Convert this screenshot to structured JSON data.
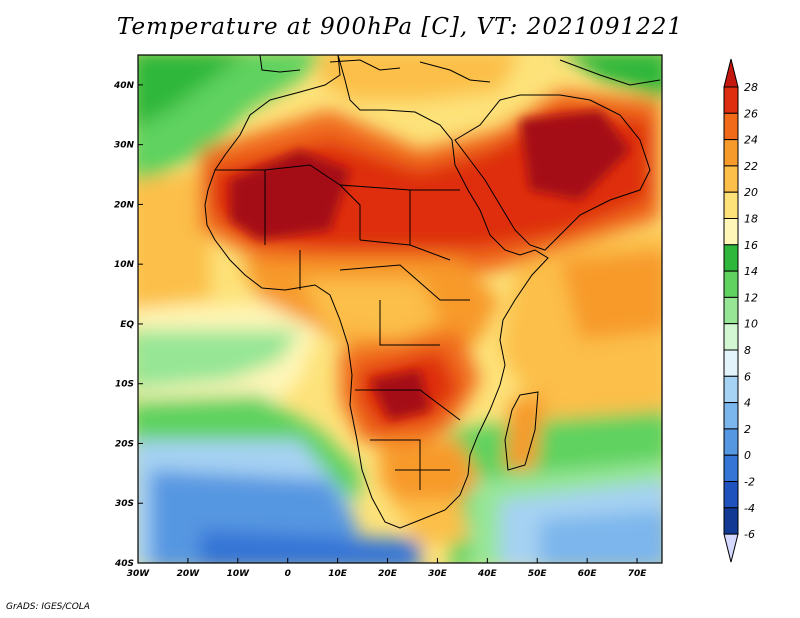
{
  "title": "Temperature at 900hPa [C], VT: 2021091221",
  "footer": "GrADS: IGES/COLA",
  "map": {
    "lon_range": [
      -30,
      75
    ],
    "lat_range": [
      -40,
      45
    ],
    "lon_ticks": [
      {
        "value": -30,
        "label": "30W"
      },
      {
        "value": -20,
        "label": "20W"
      },
      {
        "value": -10,
        "label": "10W"
      },
      {
        "value": 0,
        "label": "0"
      },
      {
        "value": 10,
        "label": "10E"
      },
      {
        "value": 20,
        "label": "20E"
      },
      {
        "value": 30,
        "label": "30E"
      },
      {
        "value": 40,
        "label": "40E"
      },
      {
        "value": 50,
        "label": "50E"
      },
      {
        "value": 60,
        "label": "60E"
      },
      {
        "value": 70,
        "label": "70E"
      }
    ],
    "lat_ticks": [
      {
        "value": 40,
        "label": "40N"
      },
      {
        "value": 30,
        "label": "30N"
      },
      {
        "value": 20,
        "label": "20N"
      },
      {
        "value": 10,
        "label": "10N"
      },
      {
        "value": 0,
        "label": "EQ"
      },
      {
        "value": -10,
        "label": "10S"
      },
      {
        "value": -20,
        "label": "20S"
      },
      {
        "value": -30,
        "label": "30S"
      },
      {
        "value": -40,
        "label": "40S"
      }
    ]
  },
  "colorbar": {
    "levels": [
      "28",
      "26",
      "24",
      "22",
      "20",
      "18",
      "16",
      "14",
      "12",
      "10",
      "8",
      "6",
      "4",
      "2",
      "0",
      "-2",
      "-4",
      "-6"
    ],
    "colors": [
      "#a50f15",
      "#de2d0f",
      "#f06a1a",
      "#f79a2c",
      "#fcbf4a",
      "#fde27a",
      "#fff6b8",
      "#2fb73b",
      "#5fd25f",
      "#96e696",
      "#d3f7d3",
      "#e3f4fb",
      "#a6d2f3",
      "#7bb6ec",
      "#5697e1",
      "#3575d6",
      "#1f52bd",
      "#123a94",
      "#081d63"
    ],
    "top_arrow_color": "#c4180f",
    "bottom_arrow_color": "#d6d9ff"
  }
}
